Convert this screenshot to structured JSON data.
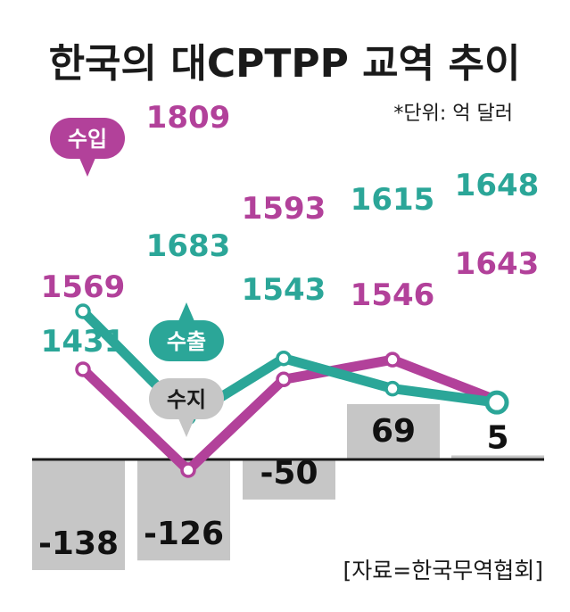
{
  "title": "한국의 대CPTPP 교역 추이",
  "unit": "*단위: 억 달러",
  "source": "[자료=한국무역협회]",
  "colors": {
    "import": "#b2419a",
    "export": "#2ba698",
    "balance": "#c6c6c6",
    "text": "#1a1a1a"
  },
  "chart_data": [
    {
      "type": "line",
      "categories": [
        "",
        "",
        "",
        "",
        ""
      ],
      "series": [
        {
          "name": "수입",
          "values": [
            1569,
            1809,
            1593,
            1546,
            1643
          ]
        },
        {
          "name": "수출",
          "values": [
            1431,
            1683,
            1543,
            1615,
            1648
          ]
        }
      ]
    },
    {
      "type": "bar",
      "categories": [
        "",
        "",
        "",
        "",
        ""
      ],
      "series": [
        {
          "name": "수지",
          "values": [
            -138,
            -126,
            -50,
            69,
            5
          ]
        }
      ]
    }
  ]
}
